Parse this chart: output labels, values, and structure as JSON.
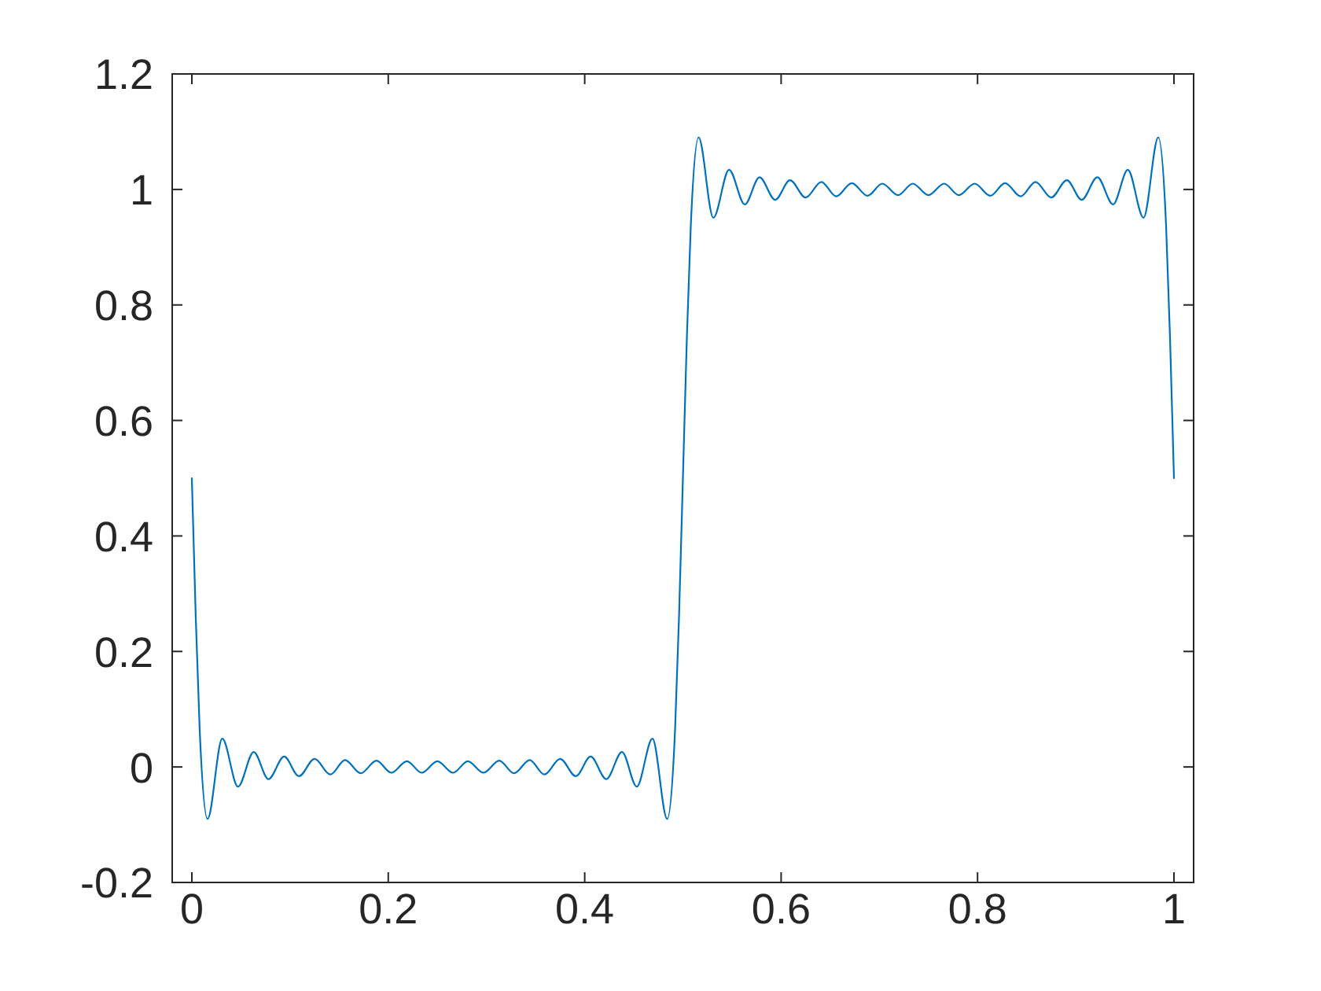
{
  "chart_data": {
    "type": "line",
    "color": "#0072bd",
    "line_style": "solid",
    "x": [
      0,
      0.004,
      0.008,
      0.016,
      0.031,
      0.047,
      0.063,
      0.078,
      0.094,
      0.109,
      0.125,
      0.141,
      0.156,
      0.172,
      0.188,
      0.203,
      0.219,
      0.234,
      0.25,
      0.266,
      0.281,
      0.297,
      0.313,
      0.328,
      0.344,
      0.359,
      0.375,
      0.391,
      0.406,
      0.422,
      0.438,
      0.453,
      0.469,
      0.484,
      0.492,
      0.496,
      0.5,
      0.504,
      0.508,
      0.516,
      0.531,
      0.547,
      0.563,
      0.578,
      0.594,
      0.609,
      0.625,
      0.641,
      0.656,
      0.672,
      0.688,
      0.703,
      0.719,
      0.734,
      0.75,
      0.766,
      0.781,
      0.797,
      0.813,
      0.828,
      0.844,
      0.859,
      0.875,
      0.891,
      0.906,
      0.922,
      0.938,
      0.953,
      0.969,
      0.984,
      0.992,
      0.996,
      1
    ],
    "values": [
      0.5,
      0.258,
      0.064,
      -0.09,
      0.049,
      -0.034,
      0.026,
      -0.021,
      0.018,
      -0.016,
      0.014,
      -0.013,
      0.012,
      -0.011,
      0.011,
      -0.01,
      0.01,
      -0.01,
      0.01,
      -0.01,
      0.01,
      -0.01,
      0.011,
      -0.011,
      0.012,
      -0.013,
      0.014,
      -0.016,
      0.018,
      -0.021,
      0.026,
      -0.034,
      0.049,
      -0.09,
      0.064,
      0.258,
      0.5,
      0.742,
      0.936,
      1.09,
      0.951,
      1.034,
      0.974,
      1.021,
      0.982,
      1.016,
      0.986,
      1.013,
      0.988,
      1.011,
      0.989,
      1.01,
      0.99,
      1.01,
      0.99,
      1.01,
      0.99,
      1.01,
      0.989,
      1.011,
      0.988,
      1.013,
      0.986,
      1.016,
      0.982,
      1.021,
      0.974,
      1.034,
      0.951,
      1.09,
      0.936,
      0.742,
      0.5
    ],
    "xlim": [
      -0.02,
      1.02
    ],
    "ylim": [
      -0.2,
      1.2
    ],
    "xticks": [
      0,
      0.2,
      0.4,
      0.6,
      0.8,
      1
    ],
    "yticks": [
      -0.2,
      0,
      0.2,
      0.4,
      0.6,
      0.8,
      1,
      1.2
    ]
  }
}
